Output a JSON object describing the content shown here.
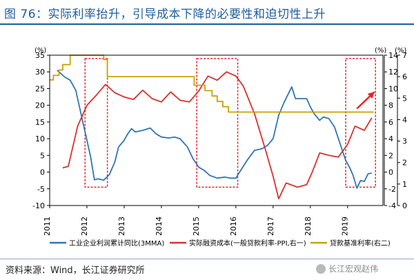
{
  "header": {
    "title": "图 76：实际利率抬升，引导成本下降的必要性和迫切性上升"
  },
  "footer": {
    "source": "资料来源：Wind，长江证券研究所",
    "watermark": "长江宏观赵伟"
  },
  "colors": {
    "title": "#1e5d9b",
    "series_profit": "#2e75b6",
    "series_real_rate": "#d9302c",
    "series_lending_rate": "#c9a100",
    "highlight_box": "#e8232a",
    "arrow": "#e8232a"
  },
  "chart_data": {
    "type": "line",
    "left_axis": {
      "unit_label": "(%)",
      "ylim": [
        -10,
        35
      ],
      "ticks": [
        -10,
        -5,
        0,
        5,
        10,
        15,
        20,
        25,
        30,
        35
      ]
    },
    "right_axes": {
      "inner": {
        "unit_label": "(%)",
        "ylim": [
          -4,
          14
        ],
        "ticks": [
          -4,
          -2,
          0,
          2,
          4,
          6,
          8,
          10,
          12,
          14
        ]
      },
      "outer": {
        "unit_label": "(%)",
        "ylim": [
          0,
          7
        ],
        "ticks": [
          0,
          1,
          2,
          3,
          4,
          5,
          6,
          7
        ]
      }
    },
    "x_axis": {
      "ticks": [
        "2011",
        "2012",
        "2013",
        "2014",
        "2015",
        "2016",
        "2017",
        "2018",
        "2019"
      ],
      "xlim": [
        2011.0,
        2019.95
      ]
    },
    "series": [
      {
        "name": "工业企业利润累计同比(3MMA)",
        "axis": "left",
        "points": [
          [
            2011.2,
            30.5
          ],
          [
            2011.4,
            28.5
          ],
          [
            2011.55,
            27.5
          ],
          [
            2011.7,
            24.5
          ],
          [
            2011.85,
            17
          ],
          [
            2012.0,
            9.5
          ],
          [
            2012.1,
            4.5
          ],
          [
            2012.2,
            -2.3
          ],
          [
            2012.3,
            -2
          ],
          [
            2012.45,
            -2.4
          ],
          [
            2012.6,
            -0.8
          ],
          [
            2012.75,
            3
          ],
          [
            2012.85,
            7.5
          ],
          [
            2013.0,
            9.5
          ],
          [
            2013.1,
            11.5
          ],
          [
            2013.2,
            13
          ],
          [
            2013.3,
            12
          ],
          [
            2013.5,
            12.5
          ],
          [
            2013.7,
            13.2
          ],
          [
            2013.85,
            11.5
          ],
          [
            2014.0,
            10.5
          ],
          [
            2014.2,
            10.2
          ],
          [
            2014.35,
            10.5
          ],
          [
            2014.5,
            10
          ],
          [
            2014.7,
            7.5
          ],
          [
            2014.85,
            4
          ],
          [
            2015.0,
            1.5
          ],
          [
            2015.15,
            0.5
          ],
          [
            2015.3,
            -1
          ],
          [
            2015.5,
            -1.8
          ],
          [
            2015.7,
            -1.5
          ],
          [
            2015.85,
            -1.8
          ],
          [
            2016.0,
            -1.8
          ],
          [
            2016.1,
            0
          ],
          [
            2016.3,
            3.5
          ],
          [
            2016.5,
            6.5
          ],
          [
            2016.7,
            7
          ],
          [
            2016.85,
            8
          ],
          [
            2017.0,
            10
          ],
          [
            2017.15,
            17
          ],
          [
            2017.3,
            21
          ],
          [
            2017.5,
            25.5
          ],
          [
            2017.6,
            22
          ],
          [
            2017.75,
            22
          ],
          [
            2017.9,
            22
          ],
          [
            2018.0,
            19.5
          ],
          [
            2018.1,
            17.5
          ],
          [
            2018.25,
            15.5
          ],
          [
            2018.35,
            16.5
          ],
          [
            2018.5,
            16
          ],
          [
            2018.65,
            13.5
          ],
          [
            2018.8,
            8.5
          ],
          [
            2018.95,
            3.5
          ],
          [
            2019.05,
            1.5
          ],
          [
            2019.15,
            -1
          ],
          [
            2019.25,
            -4.8
          ],
          [
            2019.35,
            -2.5
          ],
          [
            2019.45,
            -2.8
          ],
          [
            2019.55,
            -0.5
          ],
          [
            2019.65,
            -0.3
          ]
        ]
      },
      {
        "name": "实际融资成本(一般贷款利率-PPI,右一)",
        "axis": "right_inner",
        "points": [
          [
            2011.35,
            0.5
          ],
          [
            2011.5,
            0.7
          ],
          [
            2011.75,
            5.5
          ],
          [
            2012.0,
            8
          ],
          [
            2012.25,
            9.2
          ],
          [
            2012.5,
            10.5
          ],
          [
            2012.75,
            9.5
          ],
          [
            2013.0,
            9
          ],
          [
            2013.25,
            8.7
          ],
          [
            2013.5,
            9.8
          ],
          [
            2013.75,
            8.8
          ],
          [
            2014.0,
            8.4
          ],
          [
            2014.25,
            9.6
          ],
          [
            2014.5,
            8.6
          ],
          [
            2014.75,
            8.4
          ],
          [
            2015.0,
            9.7
          ],
          [
            2015.25,
            11.5
          ],
          [
            2015.5,
            11
          ],
          [
            2015.75,
            12
          ],
          [
            2016.0,
            11.5
          ],
          [
            2016.2,
            10.3
          ],
          [
            2016.5,
            7
          ],
          [
            2016.8,
            2.6
          ],
          [
            2017.0,
            -0.5
          ],
          [
            2017.15,
            -3.2
          ],
          [
            2017.35,
            -1.3
          ],
          [
            2017.65,
            -1.8
          ],
          [
            2017.9,
            -1.5
          ],
          [
            2018.05,
            0
          ],
          [
            2018.25,
            2.3
          ],
          [
            2018.5,
            2
          ],
          [
            2018.75,
            1.8
          ],
          [
            2019.0,
            3.3
          ],
          [
            2019.2,
            5.5
          ],
          [
            2019.45,
            5
          ],
          [
            2019.65,
            6.5
          ]
        ]
      },
      {
        "name": "贷款基准利率(右二)",
        "axis": "right_outer",
        "points": [
          [
            2011.0,
            5.85
          ],
          [
            2011.1,
            5.85
          ],
          [
            2011.1,
            6.06
          ],
          [
            2011.25,
            6.06
          ],
          [
            2011.25,
            6.31
          ],
          [
            2011.35,
            6.31
          ],
          [
            2011.35,
            6.56
          ],
          [
            2011.55,
            6.56
          ],
          [
            2011.55,
            6.56
          ],
          [
            2011.55,
            6.56
          ],
          [
            2011.55,
            6.81
          ],
          [
            2011.55,
            6.56
          ],
          [
            2011.55,
            6.56
          ],
          [
            2011.55,
            6.56
          ],
          [
            2011.55,
            7.0
          ],
          [
            2012.45,
            7.0
          ],
          [
            2012.45,
            6.8
          ],
          [
            2012.55,
            6.8
          ],
          [
            2012.55,
            6.0
          ],
          [
            2014.88,
            6.0
          ],
          [
            2014.88,
            5.6
          ],
          [
            2015.17,
            5.6
          ],
          [
            2015.17,
            5.35
          ],
          [
            2015.36,
            5.35
          ],
          [
            2015.36,
            5.1
          ],
          [
            2015.5,
            5.1
          ],
          [
            2015.5,
            4.85
          ],
          [
            2015.65,
            4.85
          ],
          [
            2015.65,
            4.6
          ],
          [
            2015.8,
            4.6
          ],
          [
            2015.8,
            4.35
          ],
          [
            2019.7,
            4.35
          ]
        ]
      }
    ],
    "highlight_ranges": [
      {
        "x": [
          2011.95,
          2012.55
        ],
        "y_left": [
          -4.5,
          34
        ]
      },
      {
        "x": [
          2014.95,
          2016.05
        ],
        "y_left": [
          -4.5,
          34
        ]
      },
      {
        "x": [
          2018.95,
          2019.75
        ],
        "y_left": [
          -4.5,
          34
        ]
      }
    ],
    "annotation_arrow": {
      "from": [
        2019.25,
        19
      ],
      "to": [
        2019.72,
        24
      ]
    }
  },
  "legend": {
    "items": [
      {
        "label": "工业企业利润累计同比(3MMA)",
        "color": "#2e75b6"
      },
      {
        "label": "实际融资成本(一般贷款利率-PPI,右一)",
        "color": "#d9302c"
      },
      {
        "label": "贷款基准利率(右二)",
        "color": "#c9a100"
      }
    ]
  }
}
